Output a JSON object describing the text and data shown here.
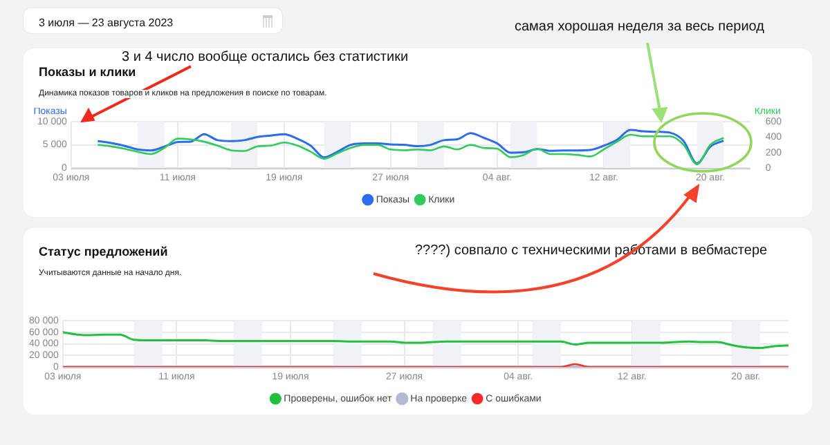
{
  "chart_data": [
    {
      "type": "line",
      "title": "Показы и клики",
      "subtitle": "Динамика показов товаров и кликов на предложения в поиске по товарам.",
      "ylabel": "Показы",
      "y2label": "Клики",
      "annotations": [
        "3 июля — 23 августа 2023",
        "3 и 4 число вообще остались без статистики",
        "самая хорошая неделя за весь период",
        "????) совпало с техническими работами в вебмастере"
      ],
      "x": [
        "2023-07-05",
        "2023-07-06",
        "2023-07-07",
        "2023-07-08",
        "2023-07-09",
        "2023-07-10",
        "2023-07-11",
        "2023-07-12",
        "2023-07-13",
        "2023-07-14",
        "2023-07-15",
        "2023-07-16",
        "2023-07-17",
        "2023-07-18",
        "2023-07-19",
        "2023-07-20",
        "2023-07-21",
        "2023-07-22",
        "2023-07-23",
        "2023-07-24",
        "2023-07-25",
        "2023-07-26",
        "2023-07-27",
        "2023-07-28",
        "2023-07-29",
        "2023-07-30",
        "2023-07-31",
        "2023-08-01",
        "2023-08-02",
        "2023-08-03",
        "2023-08-04",
        "2023-08-05",
        "2023-08-06",
        "2023-08-07",
        "2023-08-08",
        "2023-08-09",
        "2023-08-10",
        "2023-08-11",
        "2023-08-12",
        "2023-08-13",
        "2023-08-14",
        "2023-08-15",
        "2023-08-16",
        "2023-08-17",
        "2023-08-18",
        "2023-08-19",
        "2023-08-20",
        "2023-08-21"
      ],
      "series": [
        {
          "name": "Показы",
          "color": "#2b6cf0",
          "values": [
            5800,
            5400,
            4800,
            4000,
            3800,
            4600,
            5600,
            5700,
            7300,
            6000,
            5800,
            6000,
            6700,
            7000,
            7300,
            6300,
            4800,
            2300,
            3500,
            5000,
            5300,
            5300,
            5100,
            5000,
            4700,
            5000,
            6000,
            6200,
            7500,
            6500,
            5300,
            3300,
            3400,
            4100,
            3700,
            3800,
            3800,
            3900,
            4800,
            6100,
            8200,
            7900,
            7800,
            7600,
            5800,
            1000,
            4600,
            5900
          ]
        },
        {
          "name": "Клики",
          "color": "#2ecc5c",
          "axis": "y2",
          "values": [
            300,
            280,
            250,
            210,
            180,
            260,
            380,
            370,
            340,
            290,
            230,
            220,
            280,
            290,
            330,
            290,
            210,
            120,
            190,
            260,
            300,
            300,
            240,
            230,
            240,
            230,
            280,
            240,
            300,
            260,
            250,
            140,
            170,
            250,
            180,
            180,
            170,
            150,
            240,
            340,
            430,
            410,
            410,
            410,
            300,
            50,
            300,
            390
          ]
        }
      ],
      "xlim": [
        "2023-07-03",
        "2023-08-23"
      ],
      "xticks": [
        {
          "value": "2023-07-03",
          "label": "03 июля"
        },
        {
          "value": "2023-07-11",
          "label": "11 июля"
        },
        {
          "value": "2023-07-19",
          "label": "19 июля"
        },
        {
          "value": "2023-07-27",
          "label": "27 июля"
        },
        {
          "value": "2023-08-04",
          "label": "04 авг."
        },
        {
          "value": "2023-08-12",
          "label": "12 авг."
        },
        {
          "value": "2023-08-20",
          "label": "20 авг."
        }
      ],
      "ylim": [
        0,
        10000
      ],
      "yticks": [
        0,
        {
          "value": 5000,
          "label": "5 000"
        },
        {
          "value": 10000,
          "label": "10 000"
        }
      ],
      "y2lim": [
        0,
        600
      ],
      "y2ticks": [
        0,
        200,
        400,
        600
      ],
      "bands": [
        {
          "axis": "x",
          "from": "2023-07-08",
          "to": "2023-07-10",
          "color": "#f1f2f5"
        },
        {
          "axis": "x",
          "from": "2023-07-15",
          "to": "2023-07-17",
          "color": "#f1f2f5"
        },
        {
          "axis": "x",
          "from": "2023-07-22",
          "to": "2023-07-24",
          "color": "#f1f2f5"
        },
        {
          "axis": "x",
          "from": "2023-07-29",
          "to": "2023-07-31",
          "color": "#f1f2f5"
        },
        {
          "axis": "x",
          "from": "2023-08-05",
          "to": "2023-08-07",
          "color": "#f1f2f5"
        },
        {
          "axis": "x",
          "from": "2023-08-12",
          "to": "2023-08-14",
          "color": "#f1f2f5"
        },
        {
          "axis": "x",
          "from": "2023-08-19",
          "to": "2023-08-21",
          "color": "#f1f2f5"
        }
      ],
      "grid": true,
      "legend": "bottom",
      "marker": "none"
    },
    {
      "type": "line",
      "title": "Статус предложений",
      "subtitle": "Учитываются данные на начало дня.",
      "x": [
        "2023-07-03",
        "2023-07-04",
        "2023-07-05",
        "2023-07-06",
        "2023-07-07",
        "2023-07-08",
        "2023-07-09",
        "2023-07-10",
        "2023-07-11",
        "2023-07-12",
        "2023-07-13",
        "2023-07-14",
        "2023-07-15",
        "2023-07-16",
        "2023-07-17",
        "2023-07-18",
        "2023-07-19",
        "2023-07-20",
        "2023-07-21",
        "2023-07-22",
        "2023-07-23",
        "2023-07-24",
        "2023-07-25",
        "2023-07-26",
        "2023-07-27",
        "2023-07-28",
        "2023-07-29",
        "2023-07-30",
        "2023-07-31",
        "2023-08-01",
        "2023-08-02",
        "2023-08-03",
        "2023-08-04",
        "2023-08-05",
        "2023-08-06",
        "2023-08-07",
        "2023-08-08",
        "2023-08-09",
        "2023-08-10",
        "2023-08-11",
        "2023-08-12",
        "2023-08-13",
        "2023-08-14",
        "2023-08-15",
        "2023-08-16",
        "2023-08-17",
        "2023-08-18",
        "2023-08-19",
        "2023-08-20",
        "2023-08-21",
        "2023-08-22",
        "2023-08-23"
      ],
      "series": [
        {
          "name": "Проверены, ошибок нет",
          "color": "#22c03c",
          "values": [
            60000,
            56000,
            55000,
            56000,
            56000,
            47000,
            46000,
            46000,
            46000,
            46000,
            46000,
            45000,
            45000,
            45000,
            45000,
            45000,
            45000,
            45000,
            45000,
            45000,
            44000,
            44000,
            44000,
            44000,
            42000,
            42000,
            43000,
            44000,
            44000,
            44000,
            44000,
            44000,
            44000,
            44000,
            44000,
            44000,
            39000,
            42000,
            42000,
            42000,
            42000,
            42000,
            42000,
            43000,
            44000,
            43000,
            43000,
            38000,
            34000,
            33000,
            36000,
            37000
          ]
        },
        {
          "name": "На проверке",
          "color": "#b4b9d6",
          "values": [
            0,
            0,
            0,
            0,
            0,
            0,
            0,
            0,
            0,
            0,
            0,
            0,
            0,
            0,
            0,
            0,
            0,
            0,
            0,
            0,
            0,
            0,
            0,
            0,
            0,
            0,
            0,
            0,
            0,
            0,
            0,
            0,
            0,
            0,
            0,
            0,
            0,
            0,
            0,
            0,
            0,
            0,
            0,
            0,
            0,
            0,
            0,
            0,
            0,
            0,
            0,
            0
          ]
        },
        {
          "name": "С ошибками",
          "color": "#ff2a2a",
          "values": [
            0,
            0,
            0,
            0,
            0,
            0,
            0,
            0,
            0,
            0,
            0,
            0,
            0,
            0,
            0,
            0,
            0,
            0,
            0,
            0,
            0,
            0,
            0,
            0,
            0,
            0,
            0,
            0,
            0,
            0,
            0,
            0,
            0,
            0,
            0,
            0,
            5000,
            0,
            0,
            0,
            0,
            0,
            0,
            0,
            0,
            0,
            0,
            0,
            0,
            0,
            0,
            0
          ]
        }
      ],
      "xlim": [
        "2023-07-03",
        "2023-08-23"
      ],
      "xticks": [
        {
          "value": "2023-07-03",
          "label": "03 июля"
        },
        {
          "value": "2023-07-11",
          "label": "11 июля"
        },
        {
          "value": "2023-07-19",
          "label": "19 июля"
        },
        {
          "value": "2023-07-27",
          "label": "27 июля"
        },
        {
          "value": "2023-08-04",
          "label": "04 авг."
        },
        {
          "value": "2023-08-12",
          "label": "12 авг."
        },
        {
          "value": "2023-08-20",
          "label": "20 авг."
        }
      ],
      "ylim": [
        0,
        80000
      ],
      "yticks": [
        0,
        {
          "value": 20000,
          "label": "20 000"
        },
        {
          "value": 40000,
          "label": "40 000"
        },
        {
          "value": 60000,
          "label": "60 000"
        },
        {
          "value": 80000,
          "label": "80 000"
        }
      ],
      "bands": [
        {
          "axis": "x",
          "from": "2023-07-08",
          "to": "2023-07-10",
          "color": "#f1f2f5"
        },
        {
          "axis": "x",
          "from": "2023-07-15",
          "to": "2023-07-17",
          "color": "#f1f2f5"
        },
        {
          "axis": "x",
          "from": "2023-07-22",
          "to": "2023-07-24",
          "color": "#f1f2f5"
        },
        {
          "axis": "x",
          "from": "2023-07-29",
          "to": "2023-07-31",
          "color": "#f1f2f5"
        },
        {
          "axis": "x",
          "from": "2023-08-05",
          "to": "2023-08-07",
          "color": "#f1f2f5"
        },
        {
          "axis": "x",
          "from": "2023-08-12",
          "to": "2023-08-14",
          "color": "#f1f2f5"
        },
        {
          "axis": "x",
          "from": "2023-08-19",
          "to": "2023-08-21",
          "color": "#f1f2f5"
        }
      ],
      "grid": true,
      "legend": "bottom",
      "marker": "none"
    }
  ]
}
